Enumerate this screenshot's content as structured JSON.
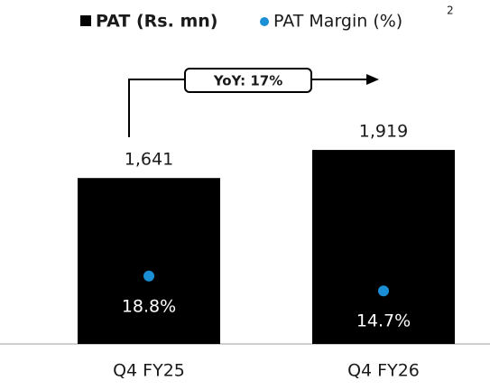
{
  "chart_data": {
    "type": "bar",
    "categories": [
      "Q4 FY25",
      "Q4 FY26"
    ],
    "series": [
      {
        "name": "PAT (Rs. mn)",
        "color": "#000000",
        "values": [
          1641,
          1919
        ],
        "value_labels": [
          "1,641",
          "1,919"
        ]
      },
      {
        "name": "PAT Margin (%)",
        "color": "#1a8fd6",
        "values": [
          18.8,
          14.7
        ],
        "value_labels": [
          "18.8%",
          "14.7%"
        ],
        "axis": "y2"
      }
    ],
    "legend_footnote": "2",
    "annotation": "YoY: 17%",
    "ylim": [
      0,
      2500
    ],
    "y2lim": [
      0,
      70
    ]
  }
}
